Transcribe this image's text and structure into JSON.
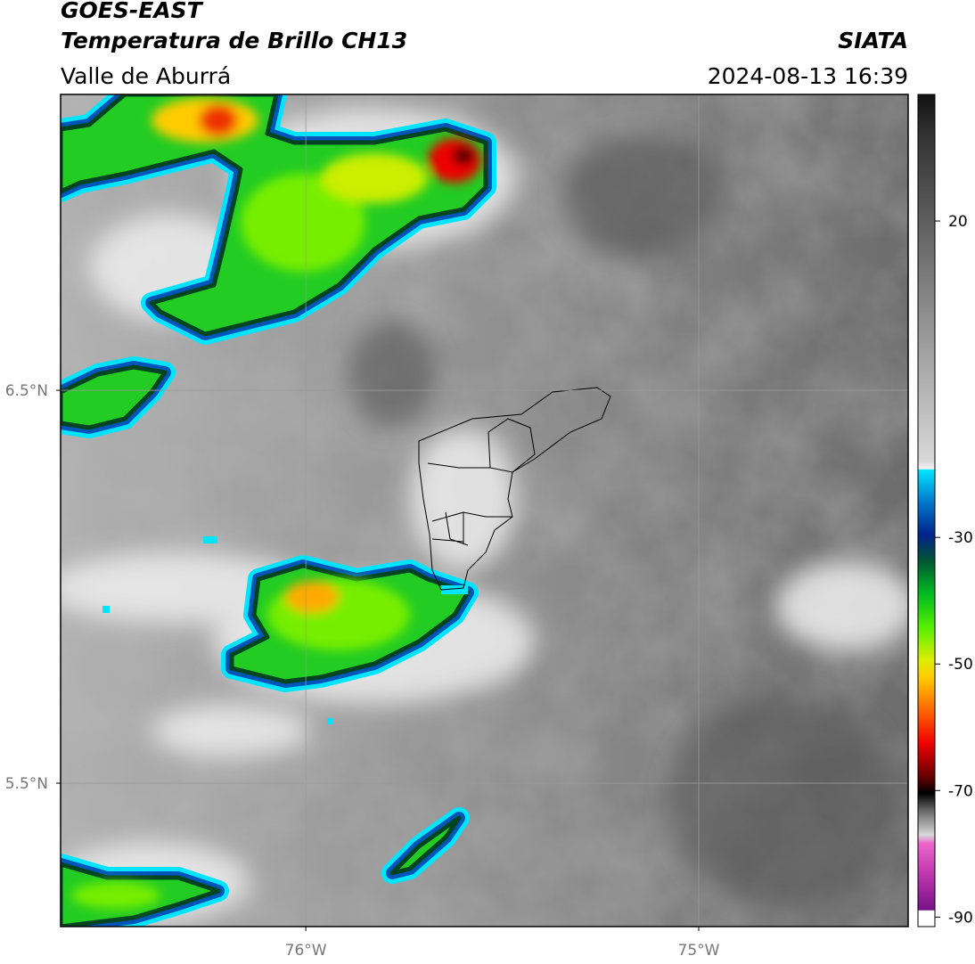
{
  "title": "GOES-EAST",
  "subtitle": "Temperatura de Brillo CH13",
  "region": "Valle de Aburrá",
  "source": "SIATA",
  "datetime": "2024-08-13 16:39",
  "map": {
    "xlim": [
      -76.624,
      -74.467
    ],
    "ylim": [
      5.135,
      7.253
    ],
    "xticks": [
      {
        "value": -76,
        "label": "76°W"
      },
      {
        "value": -75,
        "label": "75°W"
      }
    ],
    "yticks": [
      {
        "value": 6.5,
        "label": "6.5°N"
      },
      {
        "value": 5.5,
        "label": "5.5°N"
      }
    ],
    "grid": true
  },
  "colorbar": {
    "lim": [
      -91.5,
      40
    ],
    "ticks": [
      20,
      -30,
      -50,
      -70,
      -90
    ]
  }
}
